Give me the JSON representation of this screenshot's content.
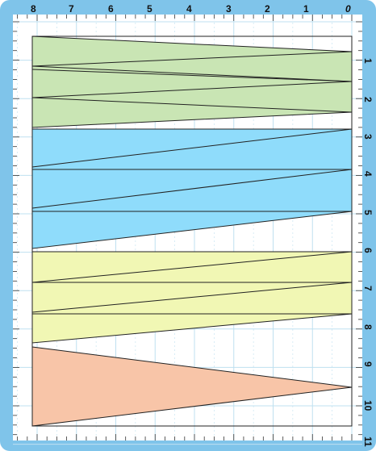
{
  "colors": {
    "frame": "#7fc4ea",
    "mat": "#ffffff",
    "grid": "#bfe0f0",
    "green": "#c9e5b4",
    "blue": "#8fdcfb",
    "yellow": "#f1f7b4",
    "salmon": "#f8c5a8",
    "line": "#222222"
  },
  "ruler": {
    "top_labels": [
      "8",
      "7",
      "6",
      "5",
      "4",
      "3",
      "2",
      "1",
      "0"
    ],
    "side_labels": [
      "1",
      "2",
      "3",
      "4",
      "5",
      "6",
      "7",
      "8",
      "9",
      "10",
      "11"
    ]
  },
  "layout": {
    "bands": [
      {
        "name": "green-band",
        "color": "green",
        "from": 0.3,
        "to": 3.3,
        "cuts": [
          [
            0.3,
            1.3
          ],
          [
            1.3,
            2.0
          ],
          [
            2.3,
            3.3
          ]
        ]
      },
      {
        "name": "blue-band",
        "color": "blue",
        "from": 3.3,
        "to": 7.3,
        "cuts": [
          [
            6.3,
            3.3
          ],
          [
            6.9,
            6.3
          ],
          [
            7.3,
            5.1
          ]
        ]
      },
      {
        "name": "yellow-band",
        "color": "yellow",
        "from": 7.3,
        "to": 9.9,
        "cuts": [
          [
            9.9,
            8.7
          ],
          [
            9.3,
            7.3
          ],
          [
            8.7,
            9.9
          ]
        ]
      },
      {
        "name": "salmon-band",
        "color": "salmon",
        "from": 10.3,
        "to": 13.0,
        "cuts": []
      }
    ]
  }
}
